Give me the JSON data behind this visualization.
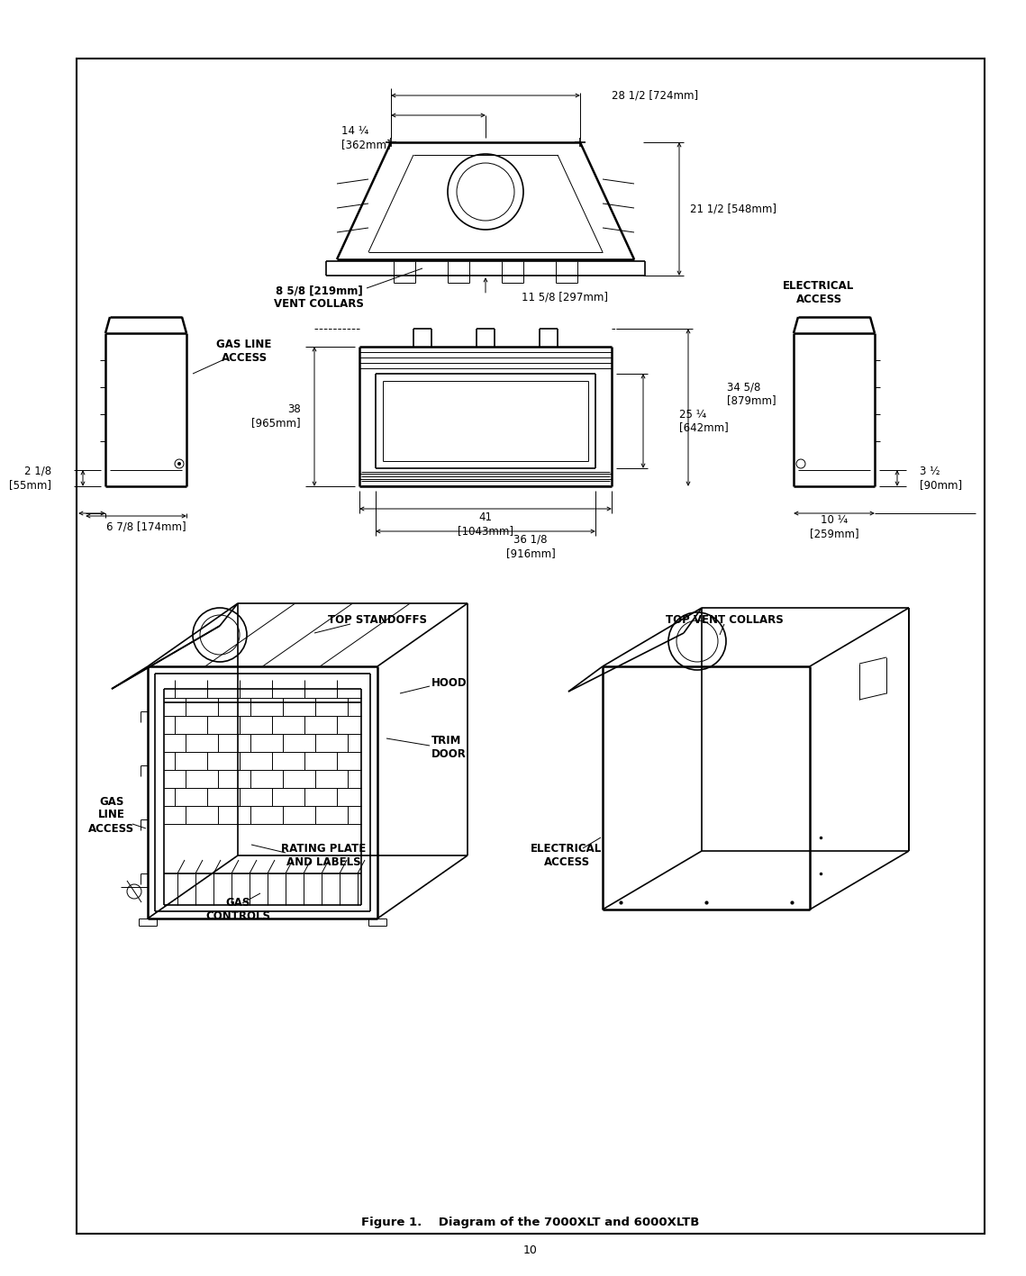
{
  "page_bg": "#ffffff",
  "border_color": "#000000",
  "border_lw": 1.5,
  "page_number": "10",
  "figure_caption": "Figure 1.    Diagram of the 7000XLT and 6000XLTB",
  "labels": {
    "dim_14_25": "14 ¼\n[362mm]",
    "dim_28_5": "28 1/2 [724mm]",
    "dim_21_5": "21 1/2 [548mm]",
    "dim_vent": "8 5/8 [219mm]\nVENT COLLARS",
    "dim_11_625": "11 5/8 [297mm]",
    "elec_access_top": "ELECTRICAL\nACCESS",
    "gas_line_access_top": "GAS LINE\nACCESS",
    "dim_38": "38\n[965mm]",
    "dim_2_125": "2 1/8\n[55mm]",
    "dim_25_25": "25 ¼\n[642mm]",
    "dim_34_625": "34 5/8\n[879mm]",
    "dim_3_5": "3 ½\n[90mm]",
    "dim_6_875": "6 7/8 [174mm]",
    "dim_41": "41\n[1043mm]",
    "dim_36_125": "36 1/8\n[916mm]",
    "dim_10_25": "10 ¼\n[259mm]",
    "top_standoffs": "TOP STANDOFFS",
    "top_vent_collars": "TOP VENT COLLARS",
    "hood": "HOOD",
    "trim_door": "TRIM\nDOOR",
    "gas_line_access_bot": "GAS\nLINE\nACCESS",
    "rating_plate": "RATING PLATE\nAND LABELS",
    "gas_controls": "GAS\nCONTROLS",
    "elec_access_bot": "ELECTRICAL\nACCESS"
  },
  "text_color": "#000000",
  "draw_color": "#000000",
  "font_size": 8.5,
  "font_size_caption": 9.5,
  "font_size_page": 9
}
